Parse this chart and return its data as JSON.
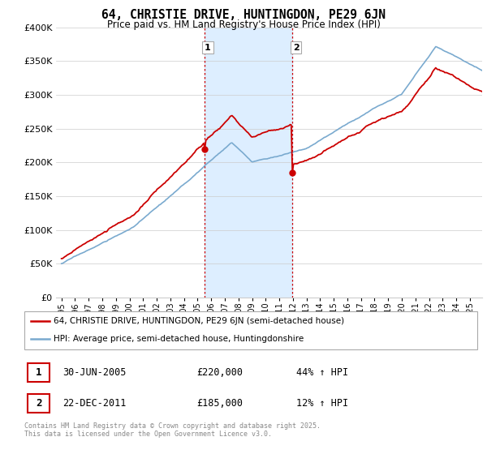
{
  "title": "64, CHRISTIE DRIVE, HUNTINGDON, PE29 6JN",
  "subtitle": "Price paid vs. HM Land Registry's House Price Index (HPI)",
  "legend_line1": "64, CHRISTIE DRIVE, HUNTINGDON, PE29 6JN (semi-detached house)",
  "legend_line2": "HPI: Average price, semi-detached house, Huntingdonshire",
  "transaction1_date_str": "30-JUN-2005",
  "transaction1_price_str": "£220,000",
  "transaction1_hpi_str": "44% ↑ HPI",
  "transaction1_year": 2005.5,
  "transaction1_price": 220000,
  "transaction2_date_str": "22-DEC-2011",
  "transaction2_price_str": "£185,000",
  "transaction2_hpi_str": "12% ↑ HPI",
  "transaction2_year": 2011.97,
  "transaction2_price": 185000,
  "footer": "Contains HM Land Registry data © Crown copyright and database right 2025.\nThis data is licensed under the Open Government Licence v3.0.",
  "red_color": "#cc0000",
  "blue_color": "#7aaacf",
  "shaded_color": "#ddeeff",
  "grid_color": "#cccccc",
  "background_color": "#ffffff",
  "ylim": [
    0,
    400000
  ],
  "yticks": [
    0,
    50000,
    100000,
    150000,
    200000,
    250000,
    300000,
    350000,
    400000
  ],
  "ytick_labels": [
    "£0",
    "£50K",
    "£100K",
    "£150K",
    "£200K",
    "£250K",
    "£300K",
    "£350K",
    "£400K"
  ],
  "xstart": 1995,
  "xend": 2025
}
